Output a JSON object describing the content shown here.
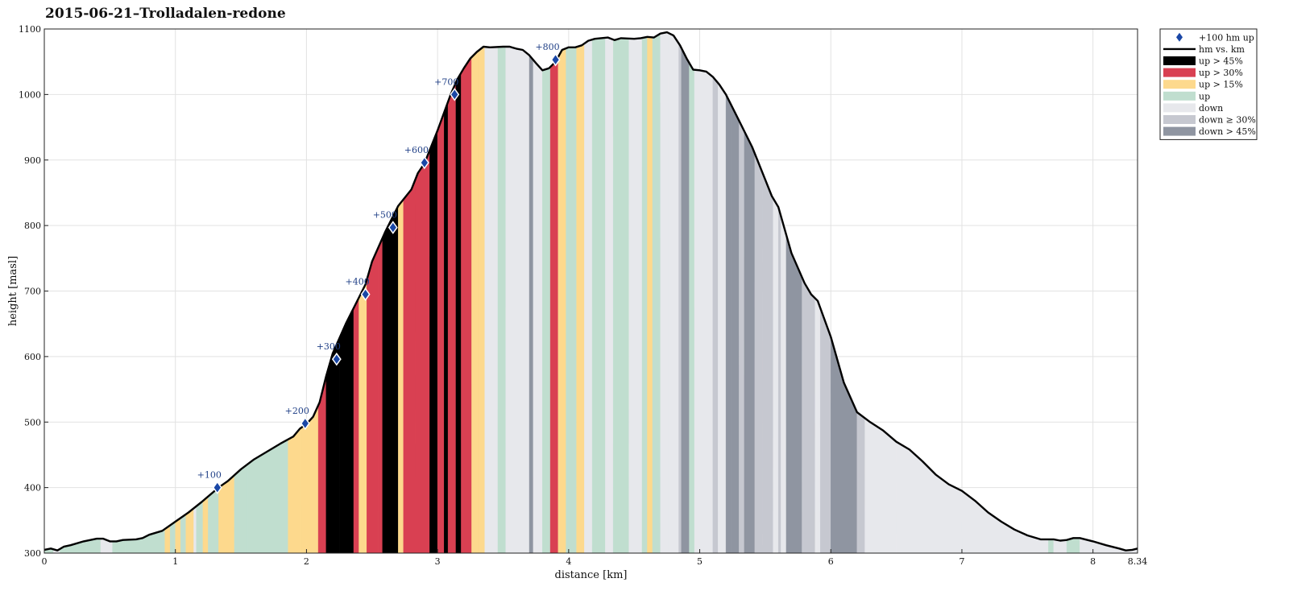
{
  "chart_data": {
    "type": "area",
    "title": "2015-06-21–Trolladalen-redone",
    "xlabel": "distance [km]",
    "ylabel": "height [masl]",
    "xlim": [
      0,
      8.34
    ],
    "ylim": [
      300,
      1100
    ],
    "xticks": [
      0,
      1,
      2,
      3,
      4,
      5,
      6,
      7,
      8,
      8.34
    ],
    "xtick_labels": [
      "0",
      "1",
      "2",
      "3",
      "4",
      "5",
      "6",
      "7",
      "8",
      "8.34"
    ],
    "yticks": [
      300,
      400,
      500,
      600,
      700,
      800,
      900,
      1000,
      1100
    ],
    "grid": true,
    "legend_position": "outside-top-right",
    "profile": {
      "name": "hm vs. km",
      "x": [
        0,
        0.05,
        0.1,
        0.15,
        0.2,
        0.3,
        0.4,
        0.45,
        0.5,
        0.55,
        0.6,
        0.7,
        0.75,
        0.8,
        0.9,
        1.0,
        1.1,
        1.2,
        1.3,
        1.35,
        1.4,
        1.5,
        1.6,
        1.7,
        1.8,
        1.9,
        1.95,
        2.0,
        2.05,
        2.1,
        2.15,
        2.2,
        2.3,
        2.4,
        2.45,
        2.5,
        2.6,
        2.7,
        2.8,
        2.85,
        2.9,
        3.0,
        3.1,
        3.15,
        3.2,
        3.25,
        3.3,
        3.35,
        3.4,
        3.5,
        3.55,
        3.6,
        3.65,
        3.7,
        3.75,
        3.8,
        3.85,
        3.9,
        3.95,
        4.0,
        4.05,
        4.1,
        4.15,
        4.2,
        4.3,
        4.35,
        4.4,
        4.5,
        4.55,
        4.6,
        4.65,
        4.7,
        4.75,
        4.8,
        4.85,
        4.9,
        4.95,
        5.0,
        5.05,
        5.1,
        5.15,
        5.2,
        5.3,
        5.4,
        5.5,
        5.55,
        5.6,
        5.7,
        5.8,
        5.85,
        5.9,
        6.0,
        6.1,
        6.2,
        6.3,
        6.4,
        6.5,
        6.6,
        6.7,
        6.8,
        6.9,
        7.0,
        7.1,
        7.2,
        7.3,
        7.4,
        7.5,
        7.6,
        7.7,
        7.75,
        7.8,
        7.85,
        7.9,
        8.0,
        8.1,
        8.2,
        8.25,
        8.3,
        8.34
      ],
      "y": [
        305,
        307,
        304,
        310,
        312,
        318,
        322,
        322,
        318,
        318,
        320,
        321,
        323,
        328,
        334,
        348,
        362,
        378,
        395,
        403,
        410,
        428,
        443,
        455,
        467,
        478,
        490,
        497,
        508,
        530,
        570,
        605,
        650,
        690,
        710,
        745,
        790,
        830,
        855,
        880,
        895,
        945,
        1000,
        1023,
        1040,
        1055,
        1065,
        1073,
        1072,
        1073,
        1073,
        1070,
        1068,
        1060,
        1048,
        1037,
        1040,
        1050,
        1068,
        1072,
        1072,
        1075,
        1082,
        1085,
        1087,
        1083,
        1086,
        1085,
        1086,
        1088,
        1087,
        1093,
        1095,
        1090,
        1075,
        1055,
        1038,
        1037,
        1035,
        1027,
        1015,
        1000,
        960,
        920,
        870,
        845,
        828,
        758,
        712,
        695,
        685,
        630,
        560,
        515,
        500,
        487,
        470,
        458,
        440,
        420,
        405,
        395,
        380,
        362,
        348,
        336,
        327,
        321,
        321,
        319,
        320,
        323,
        323,
        318,
        312,
        307,
        304,
        305,
        307
      ]
    },
    "markers": {
      "name": "+100 hm up",
      "x": [
        1.32,
        1.99,
        2.23,
        2.45,
        2.66,
        2.9,
        3.13,
        3.9
      ],
      "y": [
        400,
        498,
        596,
        695,
        797,
        896,
        1000,
        1053
      ],
      "labels": [
        "+100",
        "+200",
        "+300",
        "+400",
        "+500",
        "+600",
        "+700",
        "+800"
      ]
    },
    "bands": {
      "x": [
        0,
        0.07,
        0.12,
        0.2,
        0.32,
        0.43,
        0.52,
        0.62,
        0.75,
        0.92,
        0.96,
        1.0,
        1.04,
        1.08,
        1.14,
        1.16,
        1.21,
        1.25,
        1.33,
        1.45,
        1.55,
        1.86,
        1.96,
        2.09,
        2.15,
        2.25,
        2.36,
        2.4,
        2.46,
        2.55,
        2.58,
        2.7,
        2.74,
        2.83,
        2.94,
        3.0,
        3.05,
        3.08,
        3.14,
        3.18,
        3.26,
        3.32,
        3.36,
        3.46,
        3.52,
        3.7,
        3.73,
        3.8,
        3.86,
        3.92,
        3.98,
        4.06,
        4.12,
        4.18,
        4.28,
        4.34,
        4.46,
        4.56,
        4.6,
        4.64,
        4.7,
        4.76,
        4.84,
        4.86,
        4.92,
        4.96,
        5.02,
        5.1,
        5.14,
        5.2,
        5.24,
        5.3,
        5.34,
        5.42,
        5.48,
        5.56,
        5.6,
        5.62,
        5.66,
        5.78,
        5.88,
        5.92,
        6.0,
        6.2,
        6.22,
        6.26,
        6.5,
        7.0,
        7.66,
        7.7,
        7.8,
        7.9,
        8.1,
        8.34
      ],
      "cats": [
        "up",
        "down",
        "up",
        "up",
        "up",
        "down",
        "up",
        "up",
        "up",
        "up>15",
        "up",
        "up>15",
        "up",
        "up>15",
        "down",
        "up",
        "up>15",
        "up",
        "up>15",
        "up",
        "up",
        "up>15",
        "up>15",
        "up>30",
        "up>45",
        "up>45",
        "up>30",
        "up>15",
        "up>30",
        "up>30",
        "up>45",
        "up>15",
        "up>30",
        "up>30",
        "up>45",
        "up>30",
        "up>45",
        "up>30",
        "up>45",
        "up>30",
        "up>15",
        "up>15",
        "down",
        "up",
        "down",
        "down>45",
        "down",
        "up",
        "up>30",
        "up>15",
        "up",
        "up>15",
        "down",
        "up",
        "down",
        "up",
        "down",
        "up",
        "up>15",
        "up",
        "down",
        "down",
        "down>30",
        "down>45",
        "up",
        "down",
        "down",
        "down>30",
        "down",
        "down>45",
        "down>45",
        "down>30",
        "down>45",
        "down>30",
        "down>30",
        "down",
        "down>30",
        "down",
        "down>45",
        "down>30",
        "down",
        "down>30",
        "down>45",
        "down>30",
        "down>30",
        "down",
        "down",
        "down",
        "up",
        "down",
        "up",
        "down",
        "down"
      ]
    },
    "legend": [
      {
        "key": "marker",
        "label": "+100 hm up"
      },
      {
        "key": "line",
        "label": "hm vs. km"
      },
      {
        "key": "up>45",
        "label": "up > 45%",
        "color": "#000000"
      },
      {
        "key": "up>30",
        "label": "up > 30%",
        "color": "#d94052"
      },
      {
        "key": "up>15",
        "label": "up > 15%",
        "color": "#fdd98d"
      },
      {
        "key": "up",
        "label": "up",
        "color": "#c0decf"
      },
      {
        "key": "down",
        "label": "down",
        "color": "#e7e8ec"
      },
      {
        "key": "down>30",
        "label": "down ≥ 30%",
        "color": "#c6c8d0"
      },
      {
        "key": "down>45",
        "label": "down > 45%",
        "color": "#8f95a1"
      }
    ],
    "colors": {
      "marker": "#1a47a6",
      "marker_label": "#1f3f86",
      "profile_line": "#000000",
      "grid": "#e2e2e2"
    }
  }
}
